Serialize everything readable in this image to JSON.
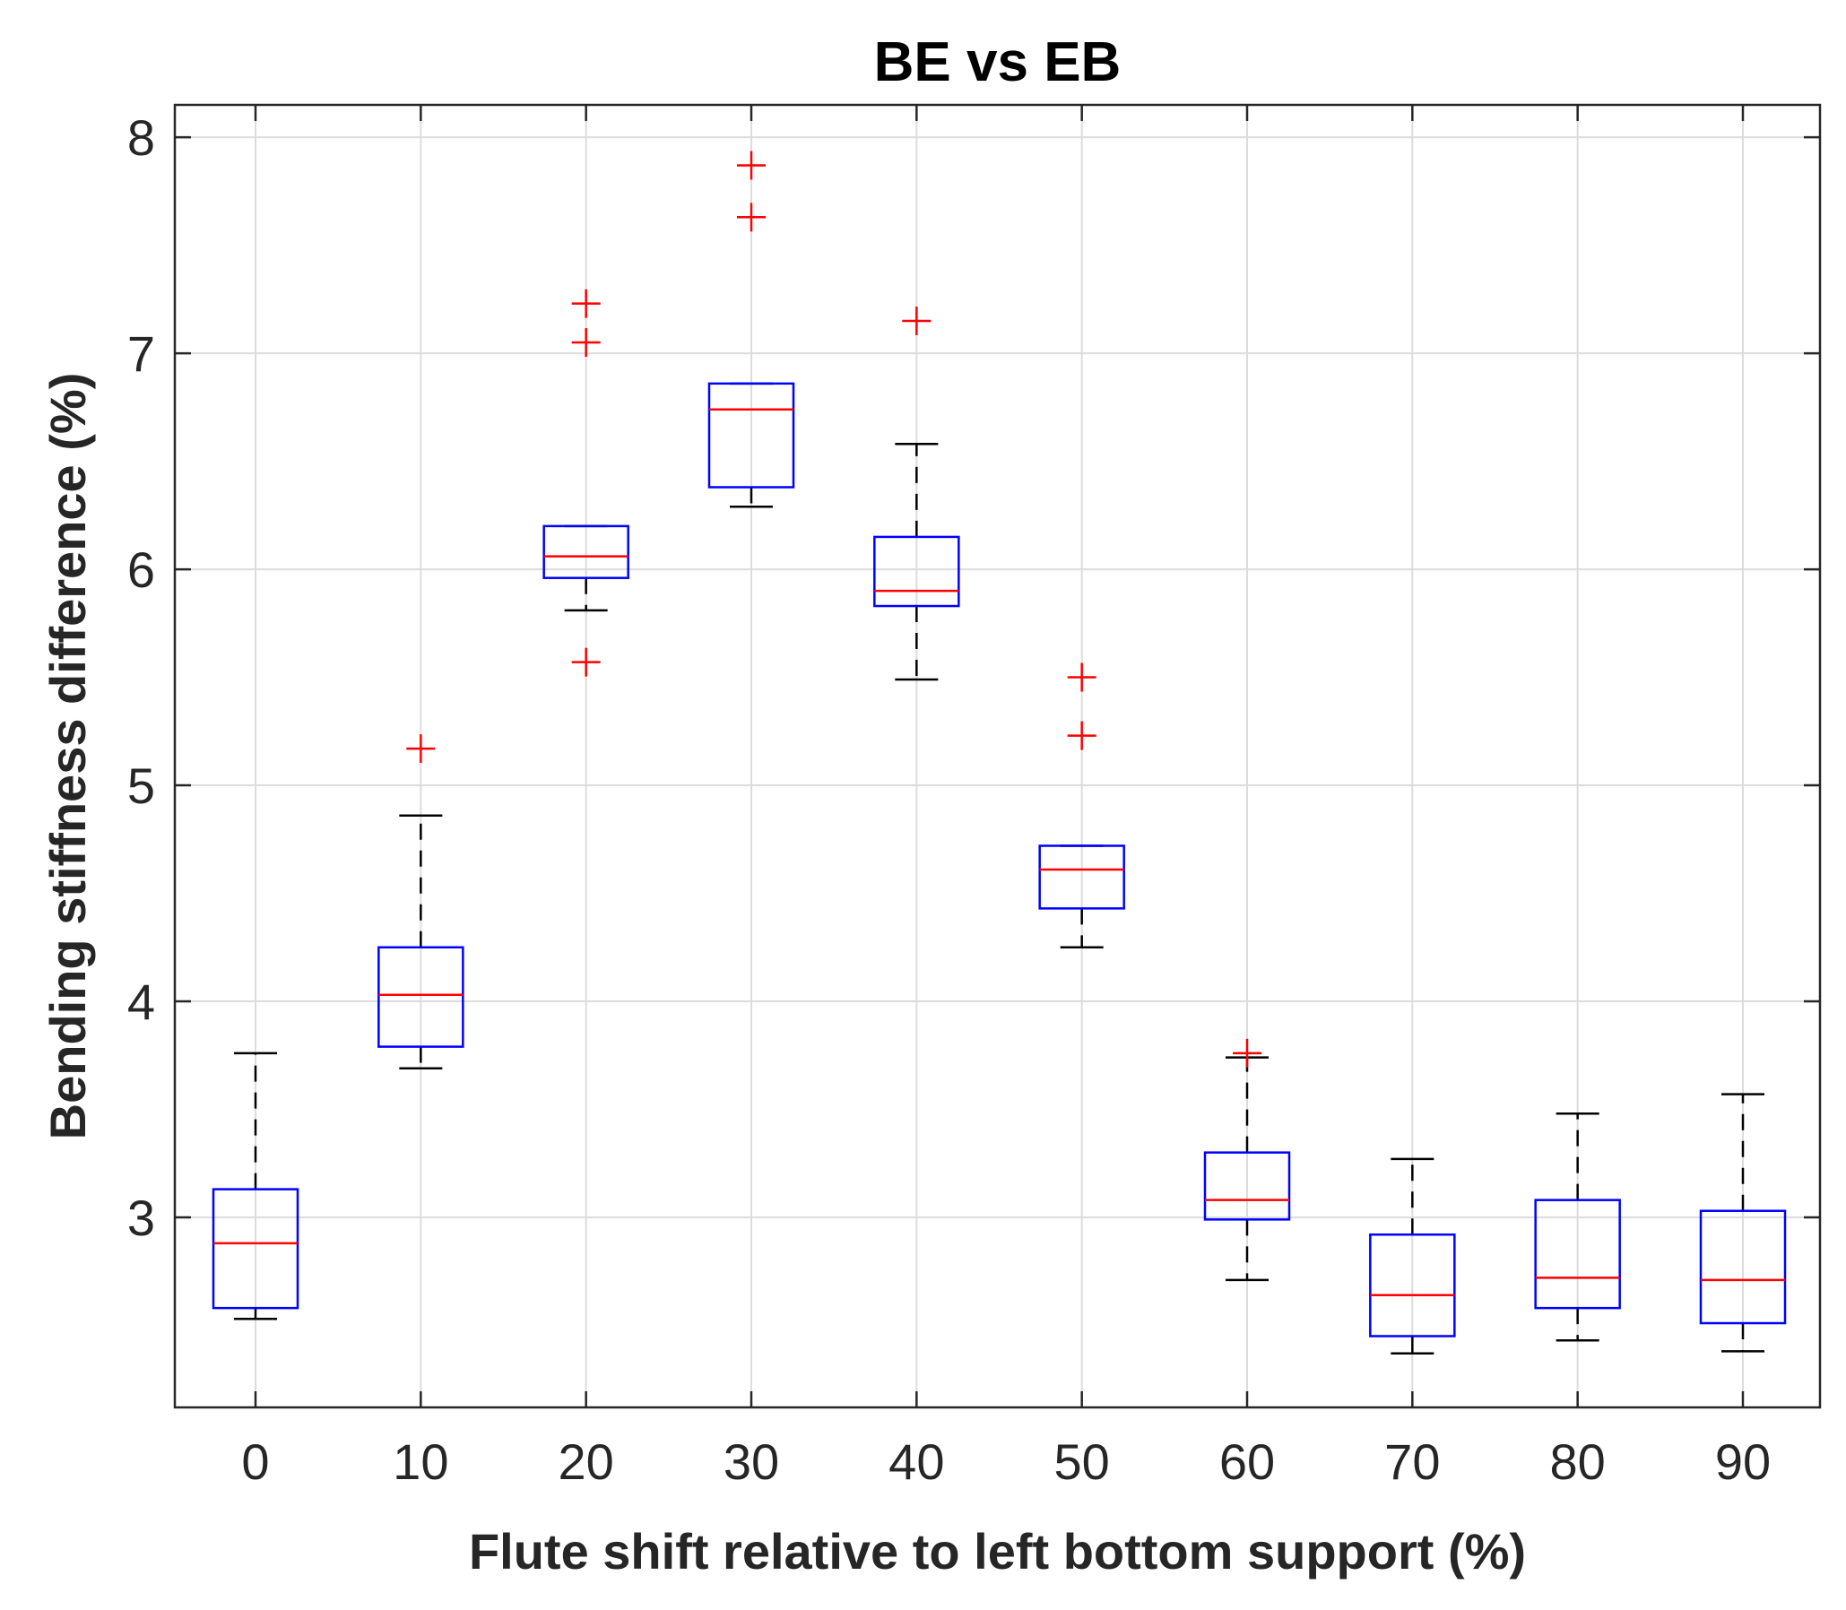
{
  "chart_data": {
    "type": "box",
    "title": "BE vs EB",
    "xlabel": "Flute shift relative to left bottom support (%)",
    "ylabel": "Bending stiffness difference (%)",
    "categories": [
      "0",
      "10",
      "20",
      "30",
      "40",
      "50",
      "60",
      "70",
      "80",
      "90"
    ],
    "yticks": [
      "3",
      "4",
      "5",
      "6",
      "7",
      "8"
    ],
    "ylim": [
      2.12,
      8.15
    ],
    "grid": true,
    "colors": {
      "box": "#0000ff",
      "median": "#ff0000",
      "whisker": "#000000",
      "outlier": "#ff0000"
    },
    "boxes": [
      {
        "x": "0",
        "whisker_low": 2.53,
        "q1": 2.58,
        "median": 2.88,
        "q3": 3.13,
        "whisker_high": 3.76,
        "outliers": []
      },
      {
        "x": "10",
        "whisker_low": 3.69,
        "q1": 3.79,
        "median": 4.03,
        "q3": 4.25,
        "whisker_high": 4.86,
        "outliers": [
          5.17
        ]
      },
      {
        "x": "20",
        "whisker_low": 5.81,
        "q1": 5.96,
        "median": 6.06,
        "q3": 6.2,
        "whisker_high": 6.2,
        "outliers": [
          7.23,
          7.05,
          5.57
        ]
      },
      {
        "x": "30",
        "whisker_low": 6.29,
        "q1": 6.38,
        "median": 6.74,
        "q3": 6.86,
        "whisker_high": 6.86,
        "outliers": [
          7.87,
          7.63
        ]
      },
      {
        "x": "40",
        "whisker_low": 5.49,
        "q1": 5.83,
        "median": 5.9,
        "q3": 6.15,
        "whisker_high": 6.58,
        "outliers": [
          7.15
        ]
      },
      {
        "x": "50",
        "whisker_low": 4.25,
        "q1": 4.43,
        "median": 4.61,
        "q3": 4.72,
        "whisker_high": 4.72,
        "outliers": [
          5.5,
          5.23
        ]
      },
      {
        "x": "60",
        "whisker_low": 2.71,
        "q1": 2.99,
        "median": 3.08,
        "q3": 3.3,
        "whisker_high": 3.74,
        "outliers": [
          3.76
        ]
      },
      {
        "x": "70",
        "whisker_low": 2.37,
        "q1": 2.45,
        "median": 2.64,
        "q3": 2.92,
        "whisker_high": 3.27,
        "outliers": []
      },
      {
        "x": "80",
        "whisker_low": 2.43,
        "q1": 2.58,
        "median": 2.72,
        "q3": 3.08,
        "whisker_high": 3.48,
        "outliers": []
      },
      {
        "x": "90",
        "whisker_low": 2.38,
        "q1": 2.51,
        "median": 2.71,
        "q3": 3.03,
        "whisker_high": 3.57,
        "outliers": []
      }
    ]
  }
}
